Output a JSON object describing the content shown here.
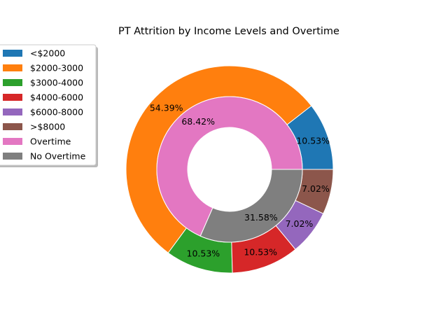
{
  "chart_data": {
    "type": "pie",
    "variant": "nested-donut",
    "title": "PT Attrition by Income Levels and Overtime",
    "legend_position": "upper-left",
    "outer_ring": {
      "categories": [
        "<$2000",
        "$2000-3000",
        "$3000-4000",
        "$4000-6000",
        "$6000-8000",
        ">$8000"
      ],
      "values": [
        10.53,
        54.39,
        10.53,
        10.53,
        7.02,
        7.02
      ],
      "labels": [
        "10.53%",
        "54.39%",
        "10.53%",
        "10.53%",
        "7.02%",
        "7.02%"
      ],
      "colors": [
        "#1f77b4",
        "#ff7f0e",
        "#2ca02c",
        "#d62728",
        "#9467bd",
        "#8c564b"
      ]
    },
    "inner_ring": {
      "categories": [
        "Overtime",
        "No Overtime"
      ],
      "values": [
        68.42,
        31.58
      ],
      "labels": [
        "68.42%",
        "31.58%"
      ],
      "colors": [
        "#e377c2",
        "#7f7f7f"
      ]
    }
  }
}
